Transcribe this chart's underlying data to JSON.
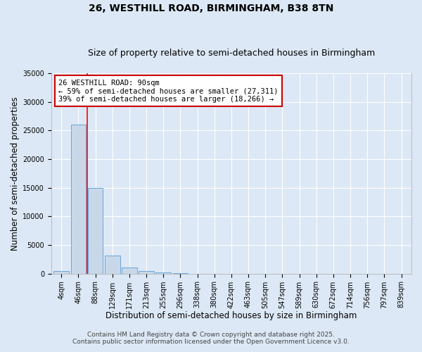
{
  "title": "26, WESTHILL ROAD, BIRMINGHAM, B38 8TN",
  "subtitle": "Size of property relative to semi-detached houses in Birmingham",
  "xlabel": "Distribution of semi-detached houses by size in Birmingham",
  "ylabel": "Number of semi-detached properties",
  "categories": [
    "4sqm",
    "46sqm",
    "88sqm",
    "129sqm",
    "171sqm",
    "213sqm",
    "255sqm",
    "296sqm",
    "338sqm",
    "380sqm",
    "422sqm",
    "463sqm",
    "505sqm",
    "547sqm",
    "589sqm",
    "630sqm",
    "672sqm",
    "714sqm",
    "756sqm",
    "797sqm",
    "839sqm"
  ],
  "values": [
    400,
    26000,
    15000,
    3200,
    1100,
    400,
    150,
    50,
    10,
    5,
    2,
    1,
    1,
    0,
    0,
    0,
    0,
    0,
    0,
    0,
    0
  ],
  "bar_color": "#c8d8e8",
  "bar_edgecolor": "#5b9bd5",
  "red_line_index": 2,
  "annotation_text": "26 WESTHILL ROAD: 90sqm\n← 59% of semi-detached houses are smaller (27,311)\n39% of semi-detached houses are larger (18,266) →",
  "annotation_box_color": "#ffffff",
  "annotation_box_edgecolor": "#cc0000",
  "ylim": [
    0,
    35000
  ],
  "yticks": [
    0,
    5000,
    10000,
    15000,
    20000,
    25000,
    30000,
    35000
  ],
  "footnote1": "Contains HM Land Registry data © Crown copyright and database right 2025.",
  "footnote2": "Contains public sector information licensed under the Open Government Licence v3.0.",
  "background_color": "#dce8f5",
  "grid_color": "#ffffff",
  "title_fontsize": 10,
  "subtitle_fontsize": 9,
  "axis_label_fontsize": 8.5,
  "tick_fontsize": 7,
  "annotation_fontsize": 7.5,
  "footnote_fontsize": 6.5
}
